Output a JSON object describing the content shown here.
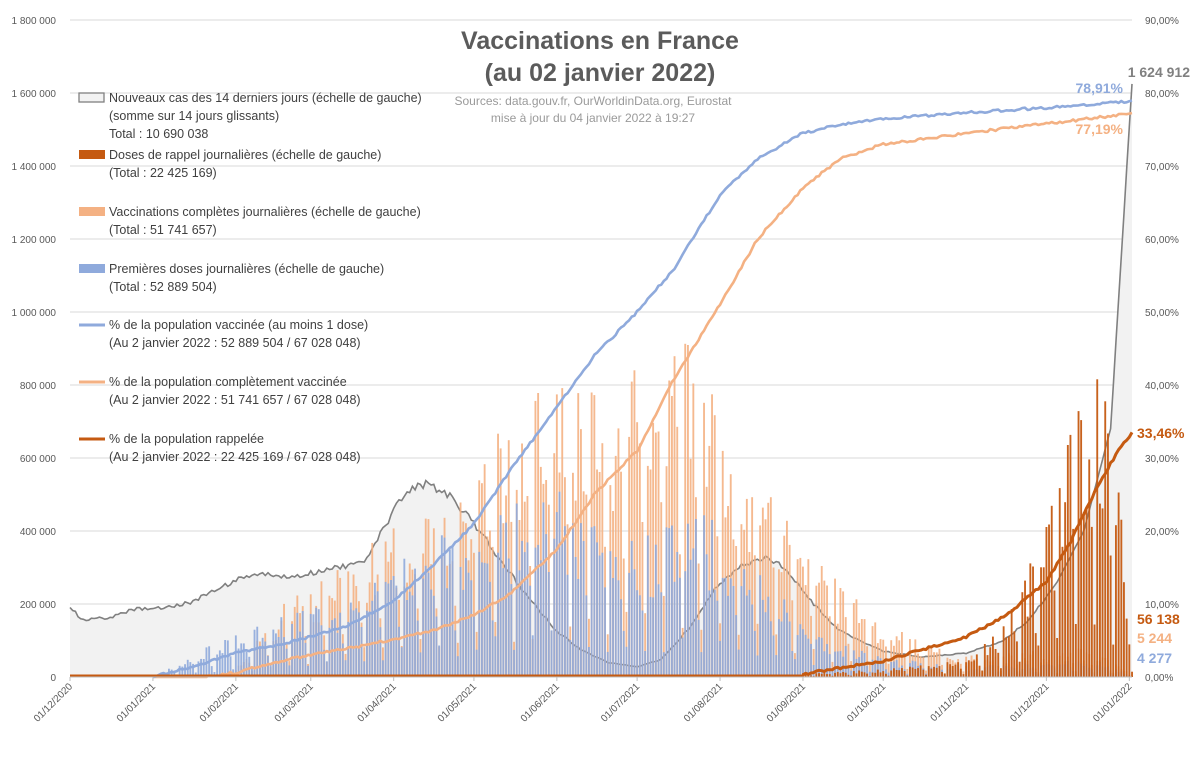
{
  "chart_data": {
    "type": "bar",
    "title": "Vaccinations en France",
    "subtitle": "(au 02 janvier 2022)",
    "sources": "Sources: data.gouv.fr, OurWorldinData.org, Eurostat",
    "updated": "mise à jour du 04 janvier 2022 à 19:27",
    "x_ticks": [
      "01/12/2020",
      "01/01/2021",
      "01/02/2021",
      "01/03/2021",
      "01/04/2021",
      "01/05/2021",
      "01/06/2021",
      "01/07/2021",
      "01/08/2021",
      "01/09/2021",
      "01/10/2021",
      "01/11/2021",
      "01/12/2021",
      "01/01/2022"
    ],
    "y_left_ticks": [
      "0",
      "200 000",
      "400 000",
      "600 000",
      "800 000",
      "1 000 000",
      "1 200 000",
      "1 400 000",
      "1 600 000",
      "1 800 000"
    ],
    "y_right_ticks": [
      "0,00%",
      "10,00%",
      "20,00%",
      "30,00%",
      "40,00%",
      "50,00%",
      "60,00%",
      "70,00%",
      "80,00%",
      "90,00%"
    ],
    "ylim_left": [
      0,
      1800000
    ],
    "ylim_right": [
      0,
      90
    ],
    "x_range": [
      "2020-12-01",
      "2022-01-02"
    ],
    "grid": true,
    "legend_position": "top-left",
    "colors": {
      "cases": "#808080",
      "cases_fill": "#f2f2f2",
      "booster": "#c55a11",
      "full": "#f4b183",
      "first": "#8faadc",
      "pct_first": "#8faadc",
      "pct_full": "#f4b183",
      "pct_booster": "#c55a11"
    },
    "legend": [
      {
        "key": "cases",
        "label": "Nouveaux cas des 14 derniers jours (échelle de gauche)",
        "sub1": "(somme sur 14 jours glissants)",
        "sub2": "Total : 10 690 038"
      },
      {
        "key": "booster",
        "label": "Doses de rappel journalières (échelle de gauche)",
        "sub1": "(Total : 22 425 169)",
        "sub2": ""
      },
      {
        "key": "full",
        "label": "Vaccinations complètes journalières (échelle de gauche)",
        "sub1": "(Total : 51 741 657)",
        "sub2": ""
      },
      {
        "key": "first",
        "label": "Premières doses journalières (échelle de gauche)",
        "sub1": "(Total : 52 889 504)",
        "sub2": ""
      },
      {
        "key": "pct_first",
        "label": "% de la population vaccinée (au moins 1 dose)",
        "sub1": "(Au 2 janvier 2022 : 52 889 504 / 67 028 048)",
        "sub2": ""
      },
      {
        "key": "pct_full",
        "label": "% de la population complètement vaccinée",
        "sub1": "(Au 2 janvier 2022 : 51 741 657 / 67 028 048)",
        "sub2": ""
      },
      {
        "key": "pct_booster",
        "label": "% de la population rappelée",
        "sub1": "(Au 2 janvier 2022 : 22 425 169 / 67 028 048)",
        "sub2": ""
      }
    ],
    "end_labels": {
      "cases": "1 624 912",
      "pct_first": "78,91%",
      "pct_full": "77,19%",
      "pct_booster": "33,46%",
      "booster": "56 138",
      "full": "5 244",
      "first": "4 277"
    },
    "series": [
      {
        "key": "cases",
        "axis": "left",
        "kind": "area",
        "x": [
          "2020-12-01",
          "2020-12-05",
          "2020-12-15",
          "2020-12-25",
          "2021-01-05",
          "2021-01-15",
          "2021-01-25",
          "2021-02-01",
          "2021-02-10",
          "2021-02-20",
          "2021-03-01",
          "2021-03-10",
          "2021-03-20",
          "2021-03-28",
          "2021-04-05",
          "2021-04-12",
          "2021-04-20",
          "2021-04-30",
          "2021-05-10",
          "2021-05-20",
          "2021-06-01",
          "2021-06-10",
          "2021-06-20",
          "2021-07-01",
          "2021-07-10",
          "2021-07-20",
          "2021-07-31",
          "2021-08-10",
          "2021-08-18",
          "2021-08-25",
          "2021-09-05",
          "2021-09-15",
          "2021-10-01",
          "2021-10-15",
          "2021-11-01",
          "2021-11-15",
          "2021-11-25",
          "2021-12-05",
          "2021-12-15",
          "2021-12-25",
          "2022-01-02"
        ],
        "values": [
          195000,
          158000,
          162000,
          185000,
          190000,
          205000,
          240000,
          265000,
          283000,
          272000,
          285000,
          300000,
          310000,
          400000,
          505000,
          530000,
          510000,
          430000,
          330000,
          230000,
          125000,
          75000,
          40000,
          28000,
          48000,
          130000,
          250000,
          310000,
          325000,
          300000,
          200000,
          125000,
          70000,
          55000,
          65000,
          100000,
          160000,
          260000,
          400000,
          680000,
          1624912
        ]
      },
      {
        "key": "booster",
        "axis": "left",
        "kind": "bar",
        "x": [
          "2021-09-01",
          "2021-10-01",
          "2021-11-01",
          "2021-11-15",
          "2021-11-25",
          "2021-12-01",
          "2021-12-10",
          "2021-12-20",
          "2021-12-28",
          "2022-01-02"
        ],
        "values": [
          10000,
          20000,
          50000,
          150000,
          300000,
          450000,
          650000,
          880000,
          500000,
          56138
        ]
      },
      {
        "key": "full",
        "axis": "left",
        "kind": "bar",
        "x": [
          "2021-01-20",
          "2021-02-01",
          "2021-02-15",
          "2021-03-01",
          "2021-03-20",
          "2021-04-05",
          "2021-04-25",
          "2021-05-10",
          "2021-05-25",
          "2021-06-10",
          "2021-06-25",
          "2021-07-10",
          "2021-07-20",
          "2021-08-01",
          "2021-08-15",
          "2021-09-01",
          "2021-09-15",
          "2021-10-01",
          "2021-10-15",
          "2021-11-01",
          "2021-12-01",
          "2021-12-20",
          "2022-01-02"
        ],
        "values": [
          0,
          20000,
          170000,
          250000,
          330000,
          420000,
          500000,
          650000,
          750000,
          800000,
          780000,
          850000,
          900000,
          700000,
          560000,
          400000,
          250000,
          150000,
          90000,
          60000,
          70000,
          80000,
          5244
        ]
      },
      {
        "key": "first",
        "axis": "left",
        "kind": "bar",
        "x": [
          "2021-01-01",
          "2021-01-10",
          "2021-01-20",
          "2021-02-01",
          "2021-02-15",
          "2021-03-01",
          "2021-03-15",
          "2021-04-01",
          "2021-04-15",
          "2021-05-01",
          "2021-05-15",
          "2021-06-01",
          "2021-06-15",
          "2021-07-01",
          "2021-07-15",
          "2021-07-25",
          "2021-08-05",
          "2021-08-20",
          "2021-09-01",
          "2021-09-15",
          "2021-10-01",
          "2021-11-01",
          "2021-12-01",
          "2021-12-20",
          "2022-01-02"
        ],
        "values": [
          5000,
          30000,
          80000,
          110000,
          150000,
          180000,
          230000,
          300000,
          360000,
          400000,
          450000,
          500000,
          440000,
          350000,
          430000,
          460000,
          330000,
          250000,
          170000,
          90000,
          50000,
          30000,
          40000,
          45000,
          4277
        ]
      },
      {
        "key": "pct_first",
        "axis": "right",
        "kind": "line",
        "x": [
          "2021-01-01",
          "2021-01-20",
          "2021-02-01",
          "2021-02-15",
          "2021-03-01",
          "2021-03-15",
          "2021-04-01",
          "2021-04-15",
          "2021-05-01",
          "2021-05-15",
          "2021-06-01",
          "2021-06-15",
          "2021-07-01",
          "2021-07-15",
          "2021-07-25",
          "2021-08-01",
          "2021-08-15",
          "2021-09-01",
          "2021-09-15",
          "2021-10-01",
          "2021-11-01",
          "2021-12-01",
          "2022-01-02"
        ],
        "values": [
          0,
          1.8,
          3.3,
          4.2,
          5.5,
          7,
          10.5,
          15,
          21,
          28.5,
          37,
          44,
          50,
          56,
          62,
          66,
          71,
          74.5,
          75.7,
          76.5,
          77.3,
          78.0,
          78.91
        ]
      },
      {
        "key": "pct_full",
        "axis": "right",
        "kind": "line",
        "x": [
          "2021-01-20",
          "2021-02-01",
          "2021-02-15",
          "2021-03-01",
          "2021-03-15",
          "2021-04-01",
          "2021-04-15",
          "2021-05-01",
          "2021-05-15",
          "2021-06-01",
          "2021-06-15",
          "2021-07-01",
          "2021-07-15",
          "2021-08-01",
          "2021-08-15",
          "2021-09-01",
          "2021-09-15",
          "2021-10-01",
          "2021-11-01",
          "2021-12-01",
          "2022-01-02"
        ],
        "values": [
          0,
          0.6,
          2,
          3,
          3.9,
          5.2,
          6.3,
          8.5,
          11.5,
          17.5,
          25,
          31,
          41,
          51,
          60,
          67,
          71,
          73,
          74.5,
          75.8,
          77.19
        ]
      },
      {
        "key": "pct_booster",
        "axis": "right",
        "kind": "line",
        "x": [
          "2021-09-01",
          "2021-10-01",
          "2021-11-01",
          "2021-11-15",
          "2021-12-01",
          "2021-12-10",
          "2021-12-20",
          "2021-12-27",
          "2022-01-02"
        ],
        "values": [
          0.4,
          2.2,
          5.5,
          8.2,
          13,
          18.5,
          26,
          30.5,
          33.46
        ]
      }
    ]
  }
}
